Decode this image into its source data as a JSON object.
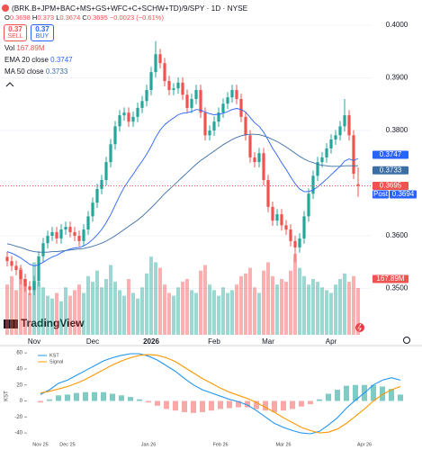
{
  "chart_data": [
    {
      "type": "candlestick",
      "title": "(BRK.B+JPM+BAC+MS+GS+WFC+C+SCHW+TD)/9/SPY · 1D · NYSE",
      "header_labels": {
        "open": "O",
        "high": "H",
        "low": "L",
        "close": "C"
      },
      "change": {
        "value": -0.0023,
        "label": "−0.0023"
      },
      "change_percent": {
        "value": -0.61,
        "label": "(−0.61%)"
      },
      "sell": {
        "price": 0.37,
        "label": "SELL"
      },
      "buy": {
        "price": 0.37,
        "label": "BUY"
      },
      "post": {
        "label": "Post",
        "value": 0.3694
      },
      "brand": "TradingView",
      "up_color": "#26a69a",
      "down_color": "#ef5350",
      "categories": [
        null,
        null,
        null,
        null,
        null,
        null,
        "Nov",
        null,
        null,
        null,
        null,
        null,
        null,
        null,
        null,
        null,
        null,
        null,
        null,
        "Dec",
        null,
        null,
        null,
        null,
        null,
        null,
        null,
        null,
        null,
        null,
        null,
        null,
        "2026",
        null,
        null,
        null,
        null,
        null,
        null,
        null,
        null,
        null,
        null,
        null,
        null,
        null,
        "Feb",
        null,
        null,
        null,
        null,
        null,
        null,
        null,
        null,
        null,
        null,
        null,
        "Mar",
        null,
        null,
        null,
        null,
        null,
        null,
        null,
        null,
        null,
        null,
        null,
        null,
        null,
        "Apr",
        null,
        null,
        null,
        null,
        null,
        null
      ],
      "open": [
        0.356,
        0.3552,
        0.3543,
        0.3535,
        0.3518,
        0.3504,
        0.3497,
        0.3514,
        0.3561,
        0.3586,
        0.36,
        0.3607,
        0.3595,
        0.3612,
        0.3617,
        0.3607,
        0.36,
        0.359,
        0.3612,
        0.3637,
        0.3663,
        0.3689,
        0.3706,
        0.374,
        0.3774,
        0.3808,
        0.3829,
        0.3834,
        0.3817,
        0.3826,
        0.3843,
        0.3856,
        0.3877,
        0.3911,
        0.3945,
        0.3928,
        0.3894,
        0.3877,
        0.388,
        0.3891,
        0.3868,
        0.3843,
        0.386,
        0.3877,
        0.3834,
        0.3791,
        0.38,
        0.3817,
        0.3834,
        0.3851,
        0.3863,
        0.3877,
        0.386,
        0.3826,
        0.3791,
        0.3749,
        0.374,
        0.3757,
        0.3706,
        0.3655,
        0.3629,
        0.3641,
        0.362,
        0.3612,
        0.359,
        0.3578,
        0.3595,
        0.3637,
        0.368,
        0.3714,
        0.374,
        0.3749,
        0.3766,
        0.3783,
        0.3791,
        0.3808,
        0.3829,
        0.3791,
        0.3698
      ],
      "high": [
        0.357,
        0.3562,
        0.3553,
        0.3545,
        0.3528,
        0.3514,
        0.3524,
        0.3571,
        0.3596,
        0.361,
        0.3617,
        0.3617,
        0.3622,
        0.3627,
        0.3627,
        0.3617,
        0.361,
        0.3622,
        0.3647,
        0.3673,
        0.3699,
        0.3716,
        0.375,
        0.3784,
        0.3818,
        0.3839,
        0.3844,
        0.3844,
        0.3836,
        0.3853,
        0.3866,
        0.3887,
        0.3921,
        0.397,
        0.3955,
        0.3938,
        0.3904,
        0.389,
        0.3901,
        0.3901,
        0.3878,
        0.387,
        0.3887,
        0.3887,
        0.3844,
        0.381,
        0.3827,
        0.3844,
        0.3861,
        0.3873,
        0.3887,
        0.3887,
        0.387,
        0.3836,
        0.3801,
        0.3759,
        0.3767,
        0.3767,
        0.3716,
        0.3665,
        0.3651,
        0.3651,
        0.363,
        0.3622,
        0.36,
        0.3605,
        0.3647,
        0.369,
        0.3724,
        0.375,
        0.3759,
        0.3776,
        0.3793,
        0.3801,
        0.3818,
        0.386,
        0.3839,
        0.3801,
        0.373
      ],
      "low": [
        0.3542,
        0.3533,
        0.3525,
        0.3508,
        0.3494,
        0.3487,
        0.3487,
        0.3504,
        0.3551,
        0.3576,
        0.359,
        0.3585,
        0.3585,
        0.3602,
        0.3597,
        0.359,
        0.358,
        0.358,
        0.3602,
        0.3627,
        0.3653,
        0.3679,
        0.3696,
        0.373,
        0.3764,
        0.3798,
        0.3819,
        0.3807,
        0.3807,
        0.3816,
        0.3833,
        0.3846,
        0.3867,
        0.3901,
        0.3918,
        0.3884,
        0.3867,
        0.3867,
        0.387,
        0.3858,
        0.3833,
        0.3833,
        0.385,
        0.3824,
        0.3781,
        0.3781,
        0.379,
        0.3807,
        0.3824,
        0.3841,
        0.3853,
        0.385,
        0.3816,
        0.3781,
        0.3739,
        0.373,
        0.373,
        0.3696,
        0.3645,
        0.3619,
        0.3619,
        0.361,
        0.3602,
        0.358,
        0.355,
        0.3568,
        0.3585,
        0.3627,
        0.367,
        0.3704,
        0.373,
        0.3739,
        0.3756,
        0.3773,
        0.3781,
        0.3798,
        0.3781,
        0.3708,
        0.3674
      ],
      "close": [
        0.3552,
        0.3543,
        0.3535,
        0.3518,
        0.3504,
        0.3497,
        0.3514,
        0.3561,
        0.3586,
        0.36,
        0.3607,
        0.3595,
        0.3612,
        0.3617,
        0.3607,
        0.36,
        0.359,
        0.3612,
        0.3637,
        0.3663,
        0.3689,
        0.3706,
        0.374,
        0.3774,
        0.3808,
        0.3829,
        0.3834,
        0.3817,
        0.3826,
        0.3843,
        0.3856,
        0.3877,
        0.3911,
        0.3945,
        0.3928,
        0.3894,
        0.3877,
        0.388,
        0.3891,
        0.3868,
        0.3843,
        0.386,
        0.3877,
        0.3834,
        0.3791,
        0.38,
        0.3817,
        0.3834,
        0.3851,
        0.3863,
        0.3877,
        0.386,
        0.3826,
        0.3791,
        0.3749,
        0.374,
        0.3757,
        0.3706,
        0.3655,
        0.3629,
        0.3641,
        0.362,
        0.3612,
        0.359,
        0.3578,
        0.3595,
        0.3637,
        0.368,
        0.3714,
        0.374,
        0.3749,
        0.3766,
        0.3783,
        0.3791,
        0.3808,
        0.3829,
        0.3791,
        0.3718,
        0.3695
      ],
      "ylim": [
        0.3412,
        0.4048
      ],
      "yticks": [
        {
          "value": 0.4,
          "label": "0.4000"
        },
        {
          "value": 0.39,
          "label": "0.3900"
        },
        {
          "value": 0.38,
          "label": "0.3800"
        },
        {
          "value": 0.36,
          "label": "0.3600"
        },
        {
          "value": 0.35,
          "label": "0.3500"
        }
      ],
      "grid": true,
      "volume": {
        "name": "Vol",
        "values": [
          180,
          210,
          160,
          240,
          200,
          150,
          260,
          190,
          170,
          140,
          130,
          150,
          120,
          170,
          140,
          160,
          180,
          150,
          210,
          190,
          230,
          170,
          200,
          250,
          190,
          160,
          140,
          200,
          150,
          130,
          170,
          220,
          280,
          260,
          240,
          180,
          150,
          140,
          170,
          190,
          200,
          160,
          150,
          230,
          250,
          180,
          160,
          140,
          170,
          150,
          160,
          180,
          210,
          220,
          240,
          170,
          150,
          230,
          260,
          210,
          180,
          200,
          190,
          230,
          290,
          240,
          210,
          180,
          200,
          190,
          170,
          160,
          150,
          180,
          200,
          220,
          190,
          210,
          167.89
        ],
        "value_labels": [
          null,
          null,
          null,
          null,
          null,
          null,
          null,
          null,
          null,
          null,
          null,
          null,
          null,
          null,
          null,
          null,
          null,
          null,
          null,
          null,
          null,
          null,
          null,
          null,
          null,
          null,
          null,
          null,
          null,
          null,
          null,
          null,
          null,
          null,
          null,
          null,
          null,
          null,
          null,
          null,
          null,
          null,
          null,
          null,
          null,
          null,
          null,
          null,
          null,
          null,
          null,
          null,
          null,
          null,
          null,
          null,
          null,
          null,
          null,
          null,
          null,
          null,
          null,
          null,
          null,
          null,
          null,
          null,
          null,
          null,
          null,
          null,
          null,
          null,
          null,
          null,
          null,
          null,
          "167.89M"
        ]
      },
      "series": [
        {
          "name": "EMA 20 close",
          "color": "#2962ff",
          "values": [
            0.357,
            0.3567,
            0.3563,
            0.3558,
            0.3552,
            0.3546,
            0.3543,
            0.3545,
            0.355,
            0.3555,
            0.356,
            0.3563,
            0.3568,
            0.3572,
            0.3575,
            0.3577,
            0.3578,
            0.3581,
            0.3586,
            0.3593,
            0.3602,
            0.3612,
            0.3625,
            0.364,
            0.3658,
            0.3676,
            0.3692,
            0.3705,
            0.3717,
            0.373,
            0.3742,
            0.3755,
            0.377,
            0.3787,
            0.3801,
            0.3811,
            0.3818,
            0.3824,
            0.383,
            0.3833,
            0.3834,
            0.3836,
            0.384,
            0.3839,
            0.3835,
            0.3832,
            0.383,
            0.3831,
            0.3833,
            0.3836,
            0.384,
            0.3842,
            0.384,
            0.3835,
            0.3825,
            0.3815,
            0.3808,
            0.3797,
            0.3782,
            0.3766,
            0.3753,
            0.3739,
            0.3726,
            0.3712,
            0.3699,
            0.3689,
            0.3684,
            0.3684,
            0.3687,
            0.3693,
            0.37,
            0.3708,
            0.3716,
            0.3724,
            0.3732,
            0.3742,
            0.3746,
            0.3743,
            0.3747
          ]
        },
        {
          "name": "MA 50 close",
          "color": "#3a6ea5",
          "values": [
            0.3585,
            0.3583,
            0.358,
            0.3578,
            0.3575,
            0.3572,
            0.357,
            0.3569,
            0.3569,
            0.3569,
            0.357,
            0.357,
            0.3571,
            0.3572,
            0.3573,
            0.3574,
            0.3575,
            0.3576,
            0.3578,
            0.358,
            0.3583,
            0.3586,
            0.359,
            0.3595,
            0.36,
            0.3606,
            0.3612,
            0.3618,
            0.3624,
            0.363,
            0.3637,
            0.3645,
            0.3653,
            0.3662,
            0.3671,
            0.368,
            0.3688,
            0.3696,
            0.3704,
            0.3712,
            0.372,
            0.3728,
            0.3736,
            0.3743,
            0.3749,
            0.3755,
            0.3761,
            0.3767,
            0.3773,
            0.3778,
            0.3783,
            0.3787,
            0.379,
            0.3792,
            0.3793,
            0.3793,
            0.3792,
            0.379,
            0.3787,
            0.3783,
            0.3779,
            0.3774,
            0.3769,
            0.3763,
            0.3757,
            0.3751,
            0.3746,
            0.3742,
            0.3739,
            0.3736,
            0.3734,
            0.3733,
            0.3732,
            0.3732,
            0.3732,
            0.3733,
            0.3733,
            0.3733,
            0.3733
          ]
        }
      ]
    },
    {
      "type": "line",
      "ylabel": "KST",
      "categories": [
        "Nov 25",
        null,
        null,
        "Dec 25",
        null,
        null,
        null,
        null,
        null,
        null,
        null,
        null,
        "Jan 26",
        null,
        null,
        null,
        null,
        null,
        null,
        null,
        "Feb 26",
        null,
        null,
        null,
        null,
        null,
        null,
        "Mar 26",
        null,
        null,
        null,
        null,
        null,
        null,
        null,
        null,
        "Apr 26",
        null,
        null,
        null,
        null
      ],
      "ylim": [
        -50,
        68
      ],
      "yticks": [
        60,
        40,
        20,
        0,
        -20,
        -40
      ],
      "series": [
        {
          "name": "KST",
          "color": "#2196f3",
          "values": [
            8,
            14,
            22,
            26,
            32,
            38,
            44,
            50,
            54,
            57,
            59,
            59,
            56,
            51,
            44,
            37,
            28,
            20,
            14,
            10,
            6,
            2,
            -1,
            -5,
            -12,
            -20,
            -28,
            -33,
            -37,
            -40,
            -41,
            -38,
            -30,
            -21,
            -9,
            1,
            10,
            20,
            26,
            29,
            26
          ]
        },
        {
          "name": "Signal",
          "color": "#ff9800",
          "values": [
            10,
            12,
            15,
            18,
            22,
            27,
            33,
            39,
            45,
            50,
            54,
            57,
            58,
            57,
            54,
            49,
            42,
            35,
            28,
            22,
            16,
            11,
            7,
            3,
            -2,
            -8,
            -14,
            -21,
            -27,
            -33,
            -37,
            -40,
            -39,
            -35,
            -28,
            -19,
            -10,
            0,
            8,
            14,
            18
          ]
        }
      ],
      "histogram": {
        "up_color": "#80cbc4",
        "down_color": "#f7a9a7",
        "values": [
          -2,
          2,
          7,
          8,
          10,
          11,
          11,
          11,
          9,
          7,
          5,
          2,
          -2,
          -6,
          -10,
          -12,
          -14,
          -15,
          -14,
          -12,
          -10,
          -9,
          -8,
          -8,
          -10,
          -12,
          -14,
          -12,
          -10,
          -7,
          -4,
          2,
          9,
          14,
          19,
          20,
          20,
          20,
          18,
          15,
          8
        ]
      }
    }
  ]
}
